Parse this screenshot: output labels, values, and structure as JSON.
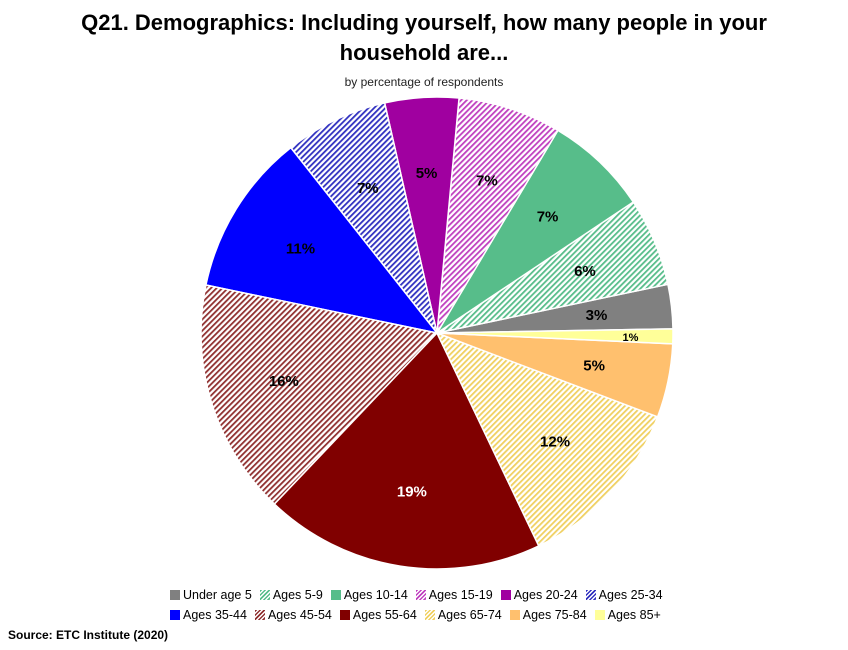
{
  "chart_data": {
    "type": "pie",
    "title": "Q21. Demographics: Including yourself, how many people in your household are...",
    "title_line1": "Q21. Demographics: Including yourself, how many people in your",
    "title_line2": "household are...",
    "subtitle": "by percentage of respondents",
    "legend_position": "bottom",
    "categories": [
      "Under age 5",
      "Ages 5-9",
      "Ages 10-14",
      "Ages 15-19",
      "Ages 20-24",
      "Ages 25-34",
      "Ages 35-44",
      "Ages 45-54",
      "Ages 55-64",
      "Ages 65-74",
      "Ages 75-84",
      "Ages 85+"
    ],
    "values": [
      3,
      6,
      7,
      7,
      5,
      7,
      11,
      16,
      19,
      12,
      5,
      1
    ],
    "labels": [
      "3%",
      "6%",
      "7%",
      "7%",
      "5%",
      "7%",
      "11%",
      "16%",
      "19%",
      "12%",
      "5%",
      "1%"
    ],
    "colors": [
      "#808080",
      "#57bd8a",
      "#57bd8a",
      "#c040c0",
      "#a000a0",
      "#3030c0",
      "#0000ff",
      "#903030",
      "#800000",
      "#f0d060",
      "#ffc06e",
      "#ffff99"
    ],
    "hatched": [
      false,
      true,
      false,
      true,
      false,
      true,
      false,
      true,
      false,
      true,
      false,
      false
    ]
  },
  "source": "Source:  ETC Institute (2020)"
}
